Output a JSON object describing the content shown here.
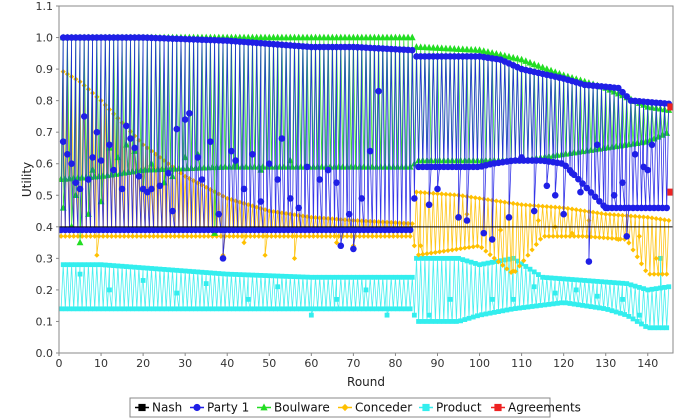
{
  "chart_data": {
    "type": "line",
    "xlabel": "Round",
    "ylabel": "Utility",
    "xlim": [
      0,
      146
    ],
    "ylim": [
      0.0,
      1.1
    ],
    "x_ticks": [
      "0",
      "10",
      "20",
      "30",
      "40",
      "50",
      "60",
      "70",
      "80",
      "90",
      "100",
      "110",
      "120",
      "130",
      "140"
    ],
    "y_ticks": [
      "0.0",
      "0.1",
      "0.2",
      "0.3",
      "0.4",
      "0.5",
      "0.6",
      "0.7",
      "0.8",
      "0.9",
      "1.0",
      "1.1"
    ],
    "grid": false,
    "legend_position": "bottom",
    "nash_utility": 0.4,
    "series": [
      {
        "name": "Party 1",
        "color": "#1f1fe6",
        "marker": "circle",
        "shown_as": "dense oscillation between an upper envelope and a lower envelope",
        "upper": [
          [
            0,
            1.0
          ],
          [
            20,
            1.0
          ],
          [
            40,
            0.99
          ],
          [
            60,
            0.97
          ],
          [
            70,
            0.97
          ],
          [
            84,
            0.96
          ],
          [
            85,
            0.94
          ],
          [
            100,
            0.94
          ],
          [
            105,
            0.93
          ],
          [
            110,
            0.9
          ],
          [
            120,
            0.87
          ],
          [
            125,
            0.85
          ],
          [
            133,
            0.84
          ],
          [
            136,
            0.8
          ],
          [
            145,
            0.79
          ]
        ],
        "lower": [
          [
            0,
            0.39
          ],
          [
            40,
            0.39
          ],
          [
            84,
            0.39
          ],
          [
            85,
            0.59
          ],
          [
            100,
            0.59
          ],
          [
            103,
            0.6
          ],
          [
            108,
            0.61
          ],
          [
            110,
            0.61
          ],
          [
            115,
            0.61
          ],
          [
            120,
            0.6
          ],
          [
            130,
            0.46
          ],
          [
            140,
            0.46
          ],
          [
            145,
            0.46
          ]
        ],
        "scattered": [
          [
            1,
            0.67
          ],
          [
            2,
            0.63
          ],
          [
            3,
            0.6
          ],
          [
            4,
            0.54
          ],
          [
            5,
            0.52
          ],
          [
            6,
            0.75
          ],
          [
            7,
            0.55
          ],
          [
            8,
            0.62
          ],
          [
            9,
            0.7
          ],
          [
            10,
            0.61
          ],
          [
            12,
            0.66
          ],
          [
            13,
            0.58
          ],
          [
            15,
            0.52
          ],
          [
            16,
            0.72
          ],
          [
            17,
            0.68
          ],
          [
            18,
            0.65
          ],
          [
            19,
            0.56
          ],
          [
            20,
            0.52
          ],
          [
            21,
            0.51
          ],
          [
            22,
            0.52
          ],
          [
            24,
            0.53
          ],
          [
            26,
            0.57
          ],
          [
            27,
            0.45
          ],
          [
            28,
            0.71
          ],
          [
            30,
            0.74
          ],
          [
            31,
            0.76
          ],
          [
            33,
            0.62
          ],
          [
            34,
            0.55
          ],
          [
            36,
            0.67
          ],
          [
            38,
            0.44
          ],
          [
            39,
            0.3
          ],
          [
            41,
            0.64
          ],
          [
            42,
            0.61
          ],
          [
            44,
            0.52
          ],
          [
            46,
            0.63
          ],
          [
            48,
            0.48
          ],
          [
            50,
            0.6
          ],
          [
            52,
            0.55
          ],
          [
            53,
            0.68
          ],
          [
            55,
            0.49
          ],
          [
            57,
            0.46
          ],
          [
            59,
            0.59
          ],
          [
            62,
            0.55
          ],
          [
            64,
            0.58
          ],
          [
            66,
            0.54
          ],
          [
            67,
            0.34
          ],
          [
            69,
            0.44
          ],
          [
            70,
            0.33
          ],
          [
            72,
            0.49
          ],
          [
            74,
            0.64
          ],
          [
            76,
            0.83
          ],
          [
            88,
            0.47
          ],
          [
            90,
            0.52
          ],
          [
            95,
            0.43
          ],
          [
            97,
            0.42
          ],
          [
            101,
            0.38
          ],
          [
            103,
            0.36
          ],
          [
            107,
            0.43
          ],
          [
            110,
            0.62
          ],
          [
            113,
            0.45
          ],
          [
            116,
            0.53
          ],
          [
            118,
            0.5
          ],
          [
            120,
            0.44
          ],
          [
            122,
            0.57
          ],
          [
            124,
            0.51
          ],
          [
            126,
            0.29
          ],
          [
            128,
            0.66
          ],
          [
            130,
            0.46
          ],
          [
            132,
            0.5
          ],
          [
            134,
            0.54
          ],
          [
            135,
            0.37
          ],
          [
            137,
            0.63
          ],
          [
            139,
            0.59
          ],
          [
            140,
            0.58
          ],
          [
            141,
            0.66
          ]
        ]
      },
      {
        "name": "Boulware",
        "color": "#22dd22",
        "marker": "triangle",
        "shown_as": "dense oscillation between an upper envelope and a lower envelope",
        "upper": [
          [
            0,
            1.0
          ],
          [
            84,
            1.0
          ],
          [
            85,
            0.97
          ],
          [
            100,
            0.96
          ],
          [
            110,
            0.93
          ],
          [
            120,
            0.88
          ],
          [
            130,
            0.84
          ],
          [
            140,
            0.78
          ],
          [
            145,
            0.77
          ]
        ],
        "lower": [
          [
            0,
            0.55
          ],
          [
            10,
            0.56
          ],
          [
            20,
            0.58
          ],
          [
            40,
            0.59
          ],
          [
            84,
            0.59
          ],
          [
            85,
            0.61
          ],
          [
            100,
            0.61
          ],
          [
            110,
            0.61
          ],
          [
            120,
            0.63
          ],
          [
            130,
            0.65
          ],
          [
            140,
            0.67
          ],
          [
            145,
            0.7
          ]
        ],
        "scattered": [
          [
            1,
            0.46
          ],
          [
            3,
            0.4
          ],
          [
            4,
            0.5
          ],
          [
            5,
            0.35
          ],
          [
            7,
            0.44
          ],
          [
            8,
            0.58
          ],
          [
            10,
            0.48
          ],
          [
            12,
            0.65
          ],
          [
            14,
            0.62
          ],
          [
            16,
            0.66
          ],
          [
            18,
            0.64
          ],
          [
            20,
            0.52
          ],
          [
            22,
            0.6
          ],
          [
            25,
            0.54
          ],
          [
            27,
            0.56
          ],
          [
            30,
            0.62
          ],
          [
            33,
            0.63
          ],
          [
            37,
            0.38
          ],
          [
            42,
            0.6
          ],
          [
            48,
            0.58
          ],
          [
            55,
            0.61
          ]
        ]
      },
      {
        "name": "Conceder",
        "color": "#ffc000",
        "marker": "diamond",
        "shown_as": "dense oscillation between an upper envelope and a lower envelope",
        "upper": [
          [
            0,
            0.9
          ],
          [
            5,
            0.86
          ],
          [
            10,
            0.8
          ],
          [
            20,
            0.66
          ],
          [
            30,
            0.56
          ],
          [
            40,
            0.49
          ],
          [
            50,
            0.45
          ],
          [
            60,
            0.43
          ],
          [
            70,
            0.42
          ],
          [
            84,
            0.41
          ],
          [
            85,
            0.51
          ],
          [
            95,
            0.5
          ],
          [
            100,
            0.49
          ],
          [
            110,
            0.47
          ],
          [
            120,
            0.46
          ],
          [
            130,
            0.44
          ],
          [
            140,
            0.43
          ],
          [
            145,
            0.42
          ]
        ],
        "lower": [
          [
            0,
            0.37
          ],
          [
            84,
            0.37
          ],
          [
            85,
            0.31
          ],
          [
            100,
            0.34
          ],
          [
            108,
            0.25
          ],
          [
            115,
            0.37
          ],
          [
            125,
            0.37
          ],
          [
            135,
            0.36
          ],
          [
            140,
            0.25
          ],
          [
            145,
            0.25
          ]
        ],
        "scattered": [
          [
            9,
            0.31
          ],
          [
            39,
            0.31
          ],
          [
            44,
            0.35
          ],
          [
            49,
            0.31
          ],
          [
            56,
            0.3
          ],
          [
            66,
            0.35
          ],
          [
            70,
            0.34
          ],
          [
            86,
            0.34
          ],
          [
            97,
            0.44
          ],
          [
            105,
            0.39
          ],
          [
            108,
            0.26
          ],
          [
            114,
            0.42
          ],
          [
            118,
            0.4
          ],
          [
            122,
            0.38
          ],
          [
            126,
            0.42
          ],
          [
            133,
            0.36
          ],
          [
            138,
            0.37
          ],
          [
            142,
            0.3
          ]
        ]
      },
      {
        "name": "Product",
        "color": "#33eeee",
        "marker": "square",
        "shown_as": "dense oscillation between an upper envelope and a lower envelope",
        "upper": [
          [
            0,
            0.28
          ],
          [
            10,
            0.28
          ],
          [
            20,
            0.27
          ],
          [
            40,
            0.25
          ],
          [
            60,
            0.24
          ],
          [
            84,
            0.24
          ],
          [
            85,
            0.3
          ],
          [
            95,
            0.3
          ],
          [
            100,
            0.28
          ],
          [
            108,
            0.3
          ],
          [
            115,
            0.24
          ],
          [
            125,
            0.23
          ],
          [
            135,
            0.22
          ],
          [
            140,
            0.2
          ],
          [
            145,
            0.21
          ]
        ],
        "lower": [
          [
            0,
            0.14
          ],
          [
            40,
            0.14
          ],
          [
            60,
            0.14
          ],
          [
            84,
            0.14
          ],
          [
            85,
            0.1
          ],
          [
            95,
            0.1
          ],
          [
            100,
            0.12
          ],
          [
            108,
            0.14
          ],
          [
            120,
            0.16
          ],
          [
            130,
            0.14
          ],
          [
            135,
            0.12
          ],
          [
            140,
            0.08
          ],
          [
            145,
            0.08
          ]
        ],
        "scattered": [
          [
            5,
            0.25
          ],
          [
            12,
            0.2
          ],
          [
            20,
            0.23
          ],
          [
            28,
            0.19
          ],
          [
            35,
            0.22
          ],
          [
            45,
            0.17
          ],
          [
            52,
            0.21
          ],
          [
            60,
            0.12
          ],
          [
            66,
            0.17
          ],
          [
            73,
            0.2
          ],
          [
            78,
            0.12
          ],
          [
            88,
            0.12
          ],
          [
            93,
            0.17
          ],
          [
            103,
            0.17
          ],
          [
            108,
            0.17
          ],
          [
            113,
            0.21
          ],
          [
            118,
            0.19
          ],
          [
            123,
            0.2
          ],
          [
            128,
            0.18
          ],
          [
            134,
            0.17
          ],
          [
            138,
            0.12
          ],
          [
            143,
            0.3
          ]
        ]
      },
      {
        "name": "Agreements",
        "color": "#ee2222",
        "marker": "square",
        "points": [
          [
            145.5,
            0.78
          ],
          [
            145.5,
            0.51
          ]
        ]
      }
    ],
    "legend": [
      {
        "label": "Nash",
        "color": "#000000",
        "marker": "square"
      },
      {
        "label": "Party 1",
        "color": "#1f1fe6",
        "marker": "circle"
      },
      {
        "label": "Boulware",
        "color": "#22dd22",
        "marker": "triangle"
      },
      {
        "label": "Conceder",
        "color": "#ffc000",
        "marker": "diamond"
      },
      {
        "label": "Product",
        "color": "#33eeee",
        "marker": "square"
      },
      {
        "label": "Agreements",
        "color": "#ee2222",
        "marker": "square"
      }
    ]
  }
}
